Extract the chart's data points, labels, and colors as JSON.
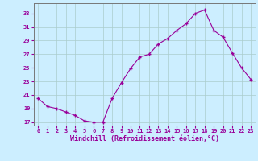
{
  "x": [
    0,
    1,
    2,
    3,
    4,
    5,
    6,
    7,
    8,
    9,
    10,
    11,
    12,
    13,
    14,
    15,
    16,
    17,
    18,
    19,
    20,
    21,
    22,
    23
  ],
  "y": [
    20.5,
    19.3,
    19.0,
    18.5,
    18.0,
    17.2,
    17.0,
    17.0,
    20.5,
    22.8,
    24.9,
    26.6,
    27.0,
    28.5,
    29.3,
    30.5,
    31.5,
    33.0,
    33.5,
    30.5,
    29.5,
    27.2,
    25.0,
    23.3
  ],
  "line_color": "#990099",
  "marker": "+",
  "marker_size": 3.5,
  "marker_lw": 1.0,
  "bg_color": "#cceeff",
  "grid_color": "#aacccc",
  "xlabel": "Windchill (Refroidissement éolien,°C)",
  "xlabel_color": "#990099",
  "tick_color": "#990099",
  "xlim": [
    -0.5,
    23.5
  ],
  "ylim": [
    16.5,
    34.5
  ],
  "yticks": [
    17,
    19,
    21,
    23,
    25,
    27,
    29,
    31,
    33
  ],
  "xticks": [
    0,
    1,
    2,
    3,
    4,
    5,
    6,
    7,
    8,
    9,
    10,
    11,
    12,
    13,
    14,
    15,
    16,
    17,
    18,
    19,
    20,
    21,
    22,
    23
  ],
  "tick_fontsize": 5.0,
  "xlabel_fontsize": 6.0,
  "ylabel_fontsize": 6.0
}
